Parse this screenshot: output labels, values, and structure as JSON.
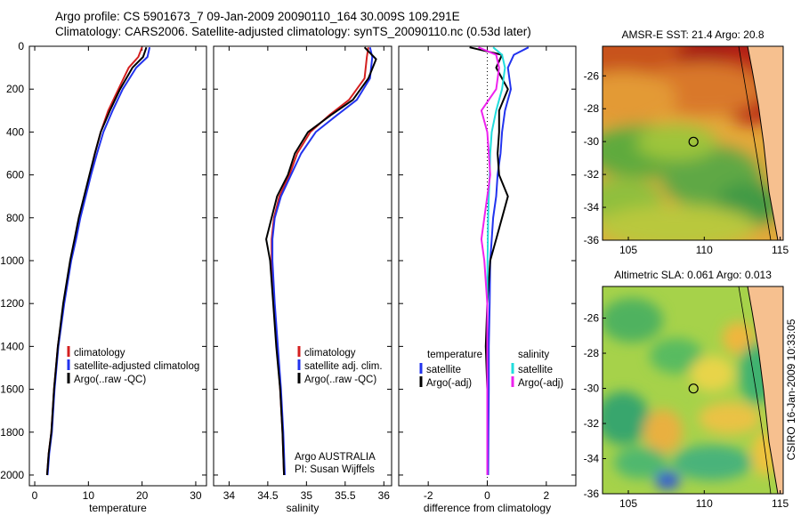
{
  "header": {
    "title_line1": "Argo profile: CS 5901673_7 09-Jan-2009 20090110_164 30.009S 109.291E",
    "title_line2": "Climatology: CARS2006. Satellite-adjusted climatology: synTS_20090110.nc (0.53d later)"
  },
  "side_label": "CSIRO 16-Jan-2009 10:33:05",
  "colors": {
    "climatology": "#d42020",
    "satellite": "#2233ee",
    "argo": "#000000",
    "sal_satellite": "#22dddd",
    "sal_argo": "#ee22ee"
  },
  "chart_data": [
    {
      "type": "line",
      "xlabel": "temperature",
      "ylabel": "",
      "xlim": [
        -1,
        32
      ],
      "ylim": [
        2050,
        0
      ],
      "xticks": [
        0,
        10,
        20,
        30
      ],
      "xtick_labels": [
        "0",
        "10",
        "20",
        "30"
      ],
      "yticks": [
        0,
        200,
        400,
        600,
        800,
        1000,
        1200,
        1400,
        1600,
        1800,
        2000
      ],
      "ytick_labels": [
        "0",
        "200",
        "400",
        "600",
        "800",
        "1000",
        "1200",
        "1400",
        "1600",
        "1800",
        "2000"
      ],
      "legend": {
        "position": "bottom-right",
        "items": [
          "climatology",
          "satellite-adjusted climatolog",
          "Argo(..raw -QC)"
        ]
      },
      "series": [
        {
          "name": "climatology",
          "color_key": "climatology",
          "x": [
            20.0,
            19.3,
            17.5,
            15.6,
            13.7,
            12.3,
            11.2,
            10.3,
            9.3,
            8.4,
            7.6,
            6.7,
            5.4,
            4.3,
            3.6,
            3.1,
            2.6,
            2.3
          ],
          "y": [
            5,
            50,
            100,
            200,
            300,
            400,
            500,
            600,
            700,
            800,
            900,
            1000,
            1200,
            1400,
            1600,
            1800,
            1900,
            2000
          ]
        },
        {
          "name": "satellite-adjusted climatolog",
          "color_key": "satellite",
          "x": [
            21.4,
            21.0,
            18.9,
            16.4,
            14.5,
            12.8,
            11.6,
            10.5,
            9.5,
            8.5,
            7.7,
            6.8,
            5.5,
            4.4,
            3.7,
            3.2,
            2.7,
            2.4
          ],
          "y": [
            5,
            50,
            100,
            200,
            300,
            400,
            500,
            600,
            700,
            800,
            900,
            1000,
            1200,
            1400,
            1600,
            1800,
            1900,
            2000
          ]
        },
        {
          "name": "Argo(..raw -QC)",
          "color_key": "argo",
          "x": [
            20.8,
            20.2,
            18.2,
            15.9,
            14.0,
            12.3,
            11.2,
            10.2,
            9.2,
            8.2,
            7.4,
            6.6,
            5.3,
            4.3,
            3.6,
            3.1,
            2.6,
            2.3
          ],
          "y": [
            5,
            50,
            100,
            200,
            300,
            400,
            500,
            600,
            700,
            800,
            900,
            1000,
            1200,
            1400,
            1600,
            1800,
            1900,
            2000
          ]
        }
      ]
    },
    {
      "type": "line",
      "xlabel": "salinity",
      "ylabel": "",
      "xlim": [
        33.8,
        36.1
      ],
      "ylim": [
        2050,
        0
      ],
      "xticks": [
        34,
        34.5,
        35,
        35.5,
        36
      ],
      "xtick_labels": [
        "34",
        "34.5",
        "35",
        "35.5",
        "36"
      ],
      "legend": {
        "position": "bottom-right",
        "items": [
          "climatology",
          "satellite adj. clim.",
          "Argo(..raw -QC)"
        ]
      },
      "annotation": {
        "line1": "Argo AUSTRALIA",
        "line2": "PI: Susan Wijffels"
      },
      "series": [
        {
          "name": "climatology",
          "color_key": "climatology",
          "x": [
            35.8,
            35.78,
            35.75,
            35.55,
            35.3,
            35.05,
            34.88,
            34.78,
            34.65,
            34.58,
            34.55,
            34.55,
            34.58,
            34.62,
            34.66,
            34.69,
            34.71
          ],
          "y": [
            5,
            50,
            150,
            250,
            320,
            400,
            500,
            600,
            700,
            800,
            900,
            1000,
            1200,
            1400,
            1600,
            1800,
            2000
          ]
        },
        {
          "name": "satellite adj. clim.",
          "color_key": "satellite",
          "x": [
            35.82,
            35.85,
            35.82,
            35.65,
            35.4,
            35.12,
            34.93,
            34.8,
            34.67,
            34.59,
            34.56,
            34.56,
            34.59,
            34.63,
            34.67,
            34.7,
            34.72
          ],
          "y": [
            5,
            50,
            150,
            250,
            320,
            400,
            500,
            600,
            700,
            800,
            900,
            1000,
            1200,
            1400,
            1600,
            1800,
            2000
          ]
        },
        {
          "name": "Argo(..raw -QC)",
          "color_key": "argo",
          "x": [
            35.75,
            35.9,
            35.8,
            35.6,
            35.32,
            35.02,
            34.85,
            34.76,
            34.62,
            34.55,
            34.48,
            34.53,
            34.57,
            34.61,
            34.66,
            34.69,
            34.71
          ],
          "y": [
            5,
            60,
            150,
            250,
            320,
            400,
            500,
            600,
            700,
            800,
            900,
            1000,
            1200,
            1400,
            1600,
            1800,
            2000
          ]
        }
      ]
    },
    {
      "type": "line",
      "xlabel": "difference from climatology",
      "ylabel": "",
      "xlim": [
        -3,
        3
      ],
      "ylim": [
        2050,
        0
      ],
      "xticks": [
        -2,
        0,
        2
      ],
      "xtick_labels": [
        "-2",
        "0",
        "2"
      ],
      "legend": {
        "position": "bottom",
        "temperature_title": "temperature",
        "temperature_items": [
          "satellite",
          "Argo(-adj)"
        ],
        "salinity_title": "salinity",
        "salinity_items": [
          "satellite",
          "Argo(-adj)"
        ]
      },
      "series": [
        {
          "name": "satellite",
          "group": "temperature",
          "color_key": "satellite",
          "x": [
            1.4,
            0.9,
            0.7,
            0.8,
            0.6,
            0.5,
            0.45,
            0.35,
            0.3,
            0.2,
            0.15,
            0.1,
            0.08,
            0.05,
            0.05,
            0.04,
            0.03
          ],
          "y": [
            5,
            40,
            100,
            200,
            300,
            400,
            500,
            600,
            700,
            800,
            900,
            1000,
            1200,
            1400,
            1600,
            1800,
            2000
          ]
        },
        {
          "name": "Argo(-adj)",
          "group": "temperature",
          "color_key": "argo",
          "x": [
            -0.6,
            0.5,
            0.3,
            0.7,
            0.4,
            0.4,
            0.35,
            0.4,
            0.7,
            0.5,
            0.3,
            0.1,
            0.0,
            -0.05,
            0.0,
            0.0,
            0.0
          ],
          "y": [
            5,
            40,
            100,
            200,
            300,
            400,
            500,
            600,
            700,
            800,
            900,
            1000,
            1200,
            1400,
            1600,
            1800,
            2000
          ]
        },
        {
          "name": "satellite",
          "group": "salinity",
          "color_key": "sal_satellite",
          "x": [
            0.2,
            0.5,
            0.6,
            0.5,
            0.3,
            0.15,
            0.1,
            0.08,
            0.05,
            0.03,
            0.02,
            0.01,
            0.0,
            0.0,
            0.0,
            0.0,
            0.0
          ],
          "y": [
            5,
            40,
            100,
            200,
            300,
            400,
            500,
            600,
            700,
            800,
            900,
            1000,
            1200,
            1400,
            1600,
            1800,
            2000
          ]
        },
        {
          "name": "Argo(-adj)",
          "group": "salinity",
          "color_key": "sal_argo",
          "x": [
            -0.3,
            0.3,
            0.4,
            0.3,
            -0.2,
            0.0,
            0.05,
            0.1,
            0.0,
            -0.1,
            -0.2,
            -0.1,
            0.0,
            0.0,
            0.0,
            0.0,
            0.0
          ],
          "y": [
            5,
            40,
            100,
            200,
            300,
            400,
            500,
            600,
            700,
            800,
            900,
            1000,
            1200,
            1400,
            1600,
            1800,
            2000
          ]
        }
      ]
    },
    {
      "type": "heatmap",
      "title": "AMSR-E SST: 21.4 Argo: 20.8",
      "xlim": [
        103.3,
        115.2
      ],
      "ylim": [
        -36,
        -24.2
      ],
      "xticks": [
        105,
        110,
        115
      ],
      "xtick_labels": [
        "105",
        "110",
        "115"
      ],
      "yticks": [
        -26,
        -28,
        -30,
        -32,
        -34,
        -36
      ],
      "ytick_labels": [
        "-26",
        "-28",
        "-30",
        "-32",
        "-34",
        "-36"
      ],
      "marker": {
        "lon": 109.291,
        "lat": -30.009
      }
    },
    {
      "type": "heatmap",
      "title": "Altimetric SLA: 0.061 Argo: 0.013",
      "xlim": [
        103.3,
        115.2
      ],
      "ylim": [
        -36,
        -24.2
      ],
      "xticks": [
        105,
        110,
        115
      ],
      "xtick_labels": [
        "105",
        "110",
        "115"
      ],
      "yticks": [
        -26,
        -28,
        -30,
        -32,
        -34,
        -36
      ],
      "ytick_labels": [
        "-26",
        "-28",
        "-30",
        "-32",
        "-34",
        "-36"
      ],
      "marker": {
        "lon": 109.291,
        "lat": -30.009
      }
    }
  ]
}
